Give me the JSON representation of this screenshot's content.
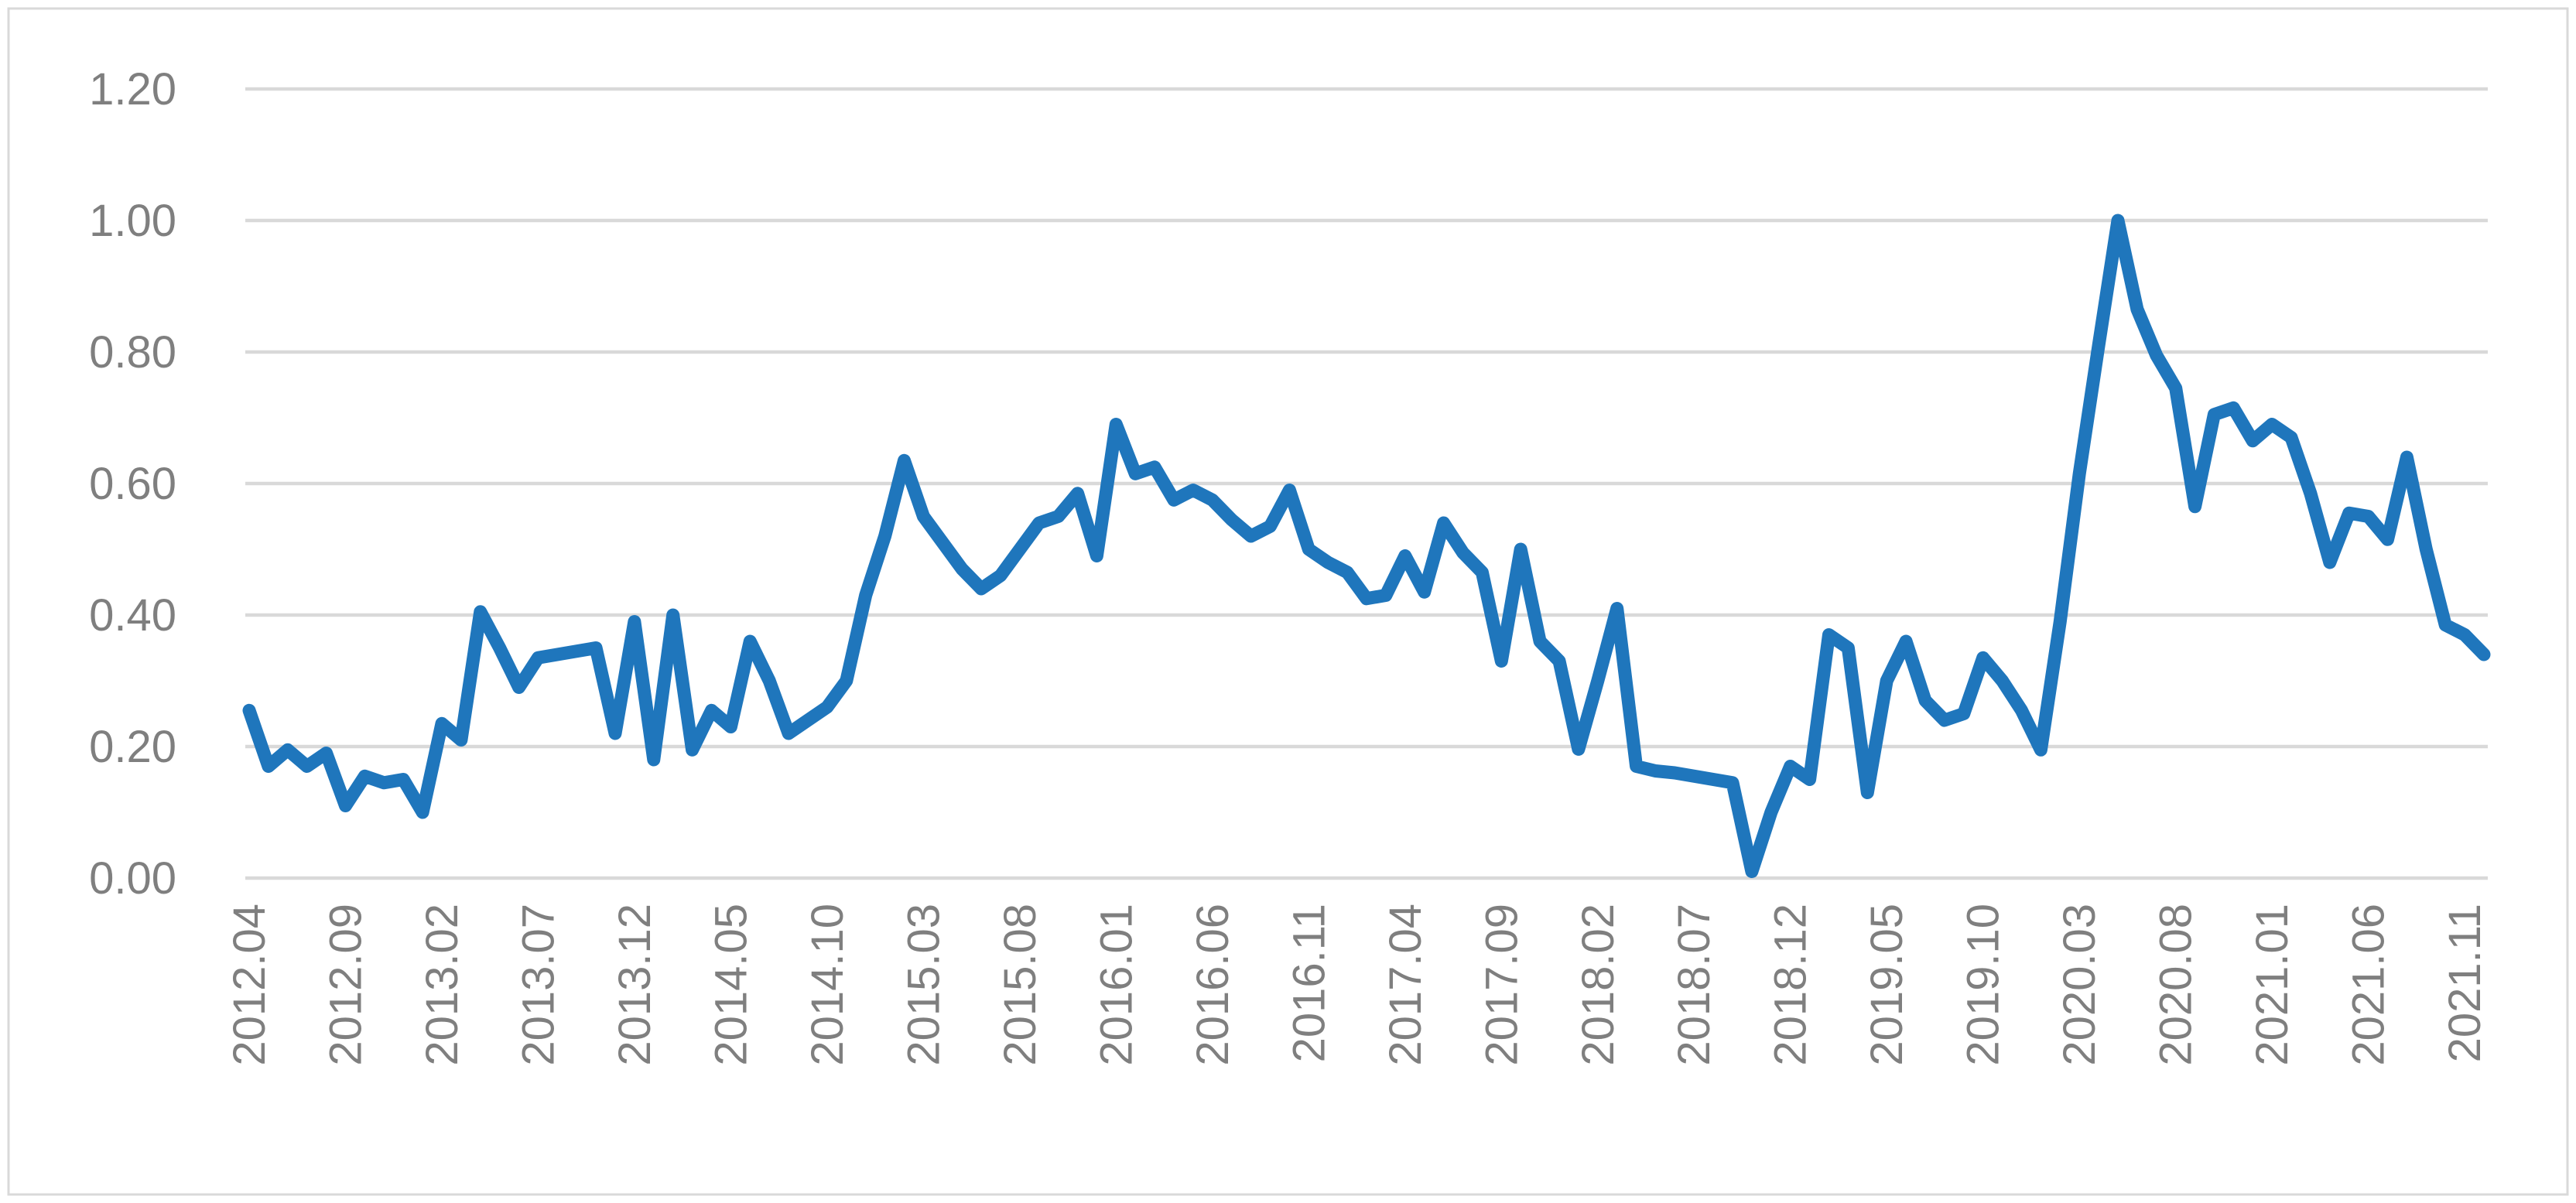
{
  "chart_data": {
    "type": "line",
    "title": "",
    "xlabel": "",
    "ylabel": "",
    "x_start": "2012.04",
    "x_end": "2021.12",
    "x_tick_step_months": 5,
    "x_tick_labels": [
      "2012.04",
      "2012.09",
      "2013.02",
      "2013.07",
      "2013.12",
      "2014.05",
      "2014.10",
      "2015.03",
      "2015.08",
      "2016.01",
      "2016.06",
      "2016.11",
      "2017.04",
      "2017.09",
      "2018.02",
      "2018.07",
      "2018.12",
      "2019.05",
      "2019.10",
      "2020.03",
      "2020.08",
      "2021.01",
      "2021.06",
      "2021.11"
    ],
    "y_tick_labels": [
      "0.00",
      "0.20",
      "0.40",
      "0.60",
      "0.80",
      "1.00",
      "1.20"
    ],
    "ylim": [
      0.0,
      1.2
    ],
    "grid": "horizontal",
    "legend_position": "none",
    "series": [
      {
        "name": "series-1",
        "values": [
          0.255,
          0.17,
          0.195,
          0.17,
          0.19,
          0.11,
          0.155,
          0.145,
          0.15,
          0.1,
          0.235,
          0.21,
          0.405,
          0.35,
          0.29,
          0.335,
          0.34,
          0.345,
          0.35,
          0.22,
          0.39,
          0.18,
          0.4,
          0.195,
          0.255,
          0.23,
          0.36,
          0.3,
          0.22,
          0.24,
          0.26,
          0.3,
          0.43,
          0.52,
          0.635,
          0.55,
          0.51,
          0.47,
          0.44,
          0.46,
          0.5,
          0.54,
          0.55,
          0.585,
          0.49,
          0.69,
          0.615,
          0.625,
          0.575,
          0.59,
          0.575,
          0.545,
          0.52,
          0.535,
          0.59,
          0.5,
          0.48,
          0.465,
          0.425,
          0.43,
          0.49,
          0.435,
          0.54,
          0.495,
          0.465,
          0.33,
          0.5,
          0.36,
          0.33,
          0.196,
          0.3,
          0.41,
          0.17,
          0.163,
          0.16,
          0.155,
          0.15,
          0.145,
          0.01,
          0.1,
          0.17,
          0.15,
          0.37,
          0.35,
          0.13,
          0.3,
          0.36,
          0.27,
          0.24,
          0.25,
          0.335,
          0.3,
          0.255,
          0.195,
          0.39,
          0.615,
          0.81,
          1.0,
          0.865,
          0.795,
          0.745,
          0.565,
          0.705,
          0.715,
          0.665,
          0.69,
          0.67,
          0.585,
          0.48,
          0.555,
          0.55,
          0.515,
          0.64,
          0.5,
          0.385,
          0.37,
          0.34
        ]
      }
    ]
  },
  "style": {
    "line_color": "#1f76bc",
    "grid_color": "#d9d9d9",
    "frame_color": "#d9d9d9",
    "label_color": "#7f7f7f",
    "background": "#ffffff"
  }
}
